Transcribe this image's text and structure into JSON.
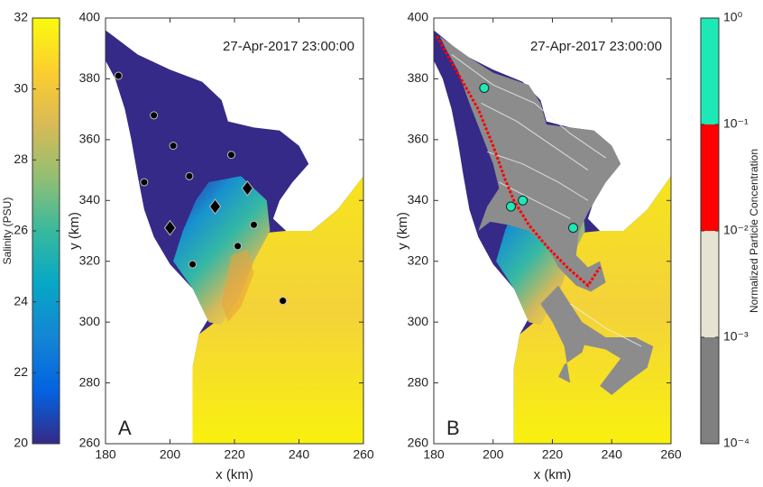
{
  "chart_data": [
    {
      "type": "scatter",
      "panel": "A",
      "annotation": "27-Apr-2017 23:00:00",
      "xlabel": "x (km)",
      "ylabel": "y (km)",
      "xlim": [
        180,
        260
      ],
      "ylim": [
        260,
        400
      ],
      "xticks": [
        180,
        200,
        220,
        240,
        260
      ],
      "yticks": [
        260,
        280,
        300,
        320,
        340,
        360,
        380,
        400
      ],
      "series": [
        {
          "marker": "circle",
          "color": "#000000",
          "x": [
            184,
            195,
            201,
            219,
            192,
            206,
            226,
            221,
            207,
            235
          ],
          "y": [
            381,
            368,
            358,
            355,
            346,
            348,
            332,
            325,
            319,
            307
          ]
        },
        {
          "marker": "diamond",
          "color": "#000000",
          "x": [
            200,
            214,
            224
          ],
          "y": [
            331,
            338,
            344
          ]
        }
      ],
      "colorbar": {
        "label": "Salinity (PSU)",
        "lim": [
          20,
          32
        ],
        "ticks": [
          20,
          22,
          24,
          26,
          28,
          30,
          32
        ],
        "colors": [
          "#352a87",
          "#0363e1",
          "#1485d4",
          "#06a7c6",
          "#38b99e",
          "#92bf73",
          "#d9ba56",
          "#fcce2e",
          "#f9fb0e"
        ]
      }
    },
    {
      "type": "scatter",
      "panel": "B",
      "annotation": "27-Apr-2017 23:00:00",
      "xlabel": "x (km)",
      "ylabel": "y (km)",
      "xlim": [
        180,
        260
      ],
      "ylim": [
        260,
        400
      ],
      "xticks": [
        180,
        200,
        220,
        240,
        260
      ],
      "yticks": [
        260,
        280,
        300,
        320,
        340,
        360,
        380,
        400
      ],
      "series": [
        {
          "marker": "circle",
          "color": "#1de9b6",
          "x": [
            197,
            206,
            210,
            227
          ],
          "y": [
            377,
            338,
            340,
            331
          ]
        }
      ],
      "colorbar": {
        "label": "Normalized Particle Concentration",
        "log": true,
        "lim": [
          0.0001,
          1
        ],
        "ticks": [
          {
            "value": 0.0001,
            "label": "10⁻⁴"
          },
          {
            "value": 0.001,
            "label": "10⁻³"
          },
          {
            "value": 0.01,
            "label": "10⁻²"
          },
          {
            "value": 0.1,
            "label": "10⁻¹"
          },
          {
            "value": 1,
            "label": "10⁰"
          }
        ],
        "bands": [
          "#808080",
          "#e6e3d3",
          "#ff0000",
          "#1de9b6"
        ]
      }
    }
  ]
}
